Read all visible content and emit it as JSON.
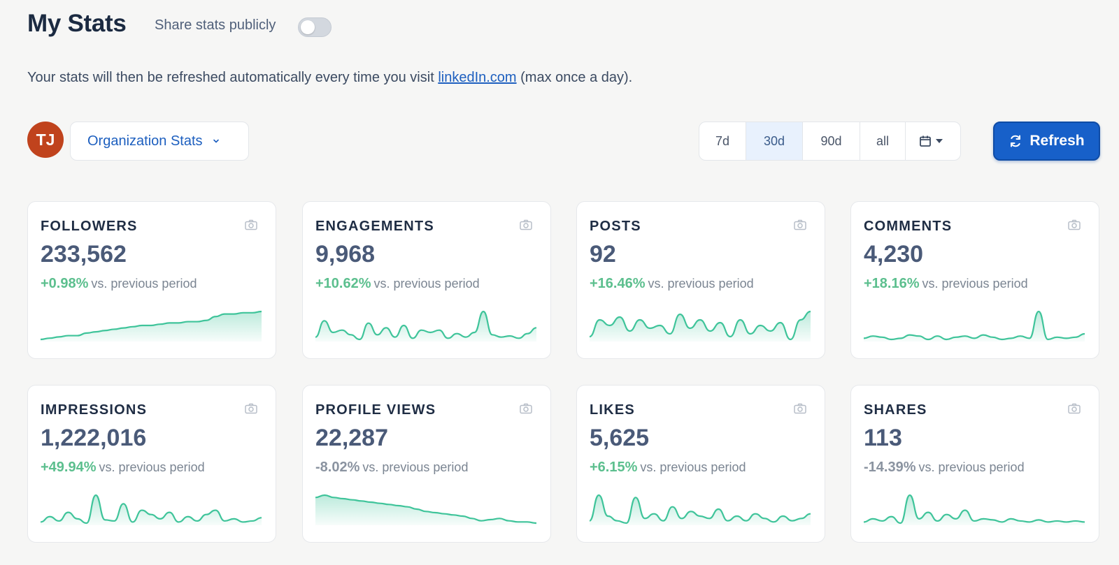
{
  "header": {
    "title": "My Stats",
    "share_label": "Share stats publicly",
    "share_enabled": false
  },
  "info": {
    "before": "Your stats will then be refreshed automatically every time you visit ",
    "link_text": "linkedIn.com",
    "after": " (max once a day)."
  },
  "controls": {
    "avatar_initials": "TJ",
    "avatar_color": "#c0431d",
    "org_select_label": "Organization Stats",
    "ranges": [
      {
        "label": "7d",
        "active": false
      },
      {
        "label": "30d",
        "active": true
      },
      {
        "label": "90d",
        "active": false
      },
      {
        "label": "all",
        "active": false
      }
    ],
    "calendar_icon": "calendar-icon",
    "refresh_label": "Refresh",
    "accent_color": "#1760c9"
  },
  "colors": {
    "positive": "#5cbf8e",
    "negative": "#8a93a0",
    "sparkline": "#3fc49a"
  },
  "cards": [
    {
      "label": "FOLLOWERS",
      "value": "233,562",
      "change": "+0.98%",
      "positive": true,
      "vs": "vs. previous period",
      "spark": [
        2,
        3,
        4,
        5,
        5,
        7,
        8,
        9,
        10,
        11,
        12,
        13,
        13,
        14,
        15,
        15,
        16,
        16,
        17,
        20,
        22,
        22,
        23,
        23,
        24
      ]
    },
    {
      "label": "ENGAGEMENTS",
      "value": "9,968",
      "change": "+10.62%",
      "positive": true,
      "vs": "vs. previous period",
      "spark": [
        4,
        18,
        8,
        10,
        6,
        2,
        16,
        6,
        12,
        4,
        14,
        3,
        10,
        8,
        10,
        3,
        7,
        4,
        8,
        26,
        6,
        4,
        5,
        3,
        7,
        12
      ]
    },
    {
      "label": "POSTS",
      "value": "92",
      "change": "+16.46%",
      "positive": true,
      "vs": "vs. previous period",
      "spark": [
        6,
        18,
        14,
        20,
        10,
        18,
        12,
        14,
        8,
        22,
        12,
        18,
        10,
        16,
        6,
        18,
        8,
        14,
        10,
        16,
        4,
        18,
        24
      ]
    },
    {
      "label": "COMMENTS",
      "value": "4,230",
      "change": "+18.16%",
      "positive": true,
      "vs": "vs. previous period",
      "spark": [
        4,
        6,
        5,
        3,
        4,
        7,
        6,
        3,
        6,
        3,
        5,
        6,
        4,
        7,
        5,
        3,
        4,
        6,
        4,
        28,
        3,
        5,
        4,
        5,
        8
      ]
    },
    {
      "label": "IMPRESSIONS",
      "value": "1,222,016",
      "change": "+49.94%",
      "positive": true,
      "vs": "vs. previous period",
      "spark": [
        3,
        8,
        4,
        12,
        6,
        2,
        28,
        5,
        4,
        20,
        3,
        14,
        10,
        6,
        12,
        3,
        8,
        4,
        10,
        14,
        4,
        6,
        3,
        4,
        7
      ]
    },
    {
      "label": "PROFILE VIEWS",
      "value": "22,287",
      "change": "-8.02%",
      "positive": false,
      "vs": "vs. previous period",
      "spark": [
        24,
        26,
        24,
        23,
        22,
        21,
        20,
        19,
        18,
        17,
        16,
        14,
        12,
        11,
        10,
        9,
        8,
        6,
        4,
        5,
        6,
        4,
        3,
        3,
        2
      ]
    },
    {
      "label": "LIKES",
      "value": "5,625",
      "change": "+6.15%",
      "positive": true,
      "vs": "vs. previous period",
      "spark": [
        4,
        26,
        8,
        4,
        2,
        24,
        6,
        10,
        4,
        16,
        6,
        12,
        8,
        6,
        14,
        4,
        8,
        4,
        10,
        6,
        3,
        8,
        4,
        6,
        10
      ]
    },
    {
      "label": "SHARES",
      "value": "113",
      "change": "-14.39%",
      "positive": false,
      "vs": "vs. previous period",
      "spark": [
        3,
        6,
        4,
        8,
        2,
        28,
        6,
        12,
        4,
        10,
        6,
        14,
        4,
        6,
        5,
        3,
        6,
        4,
        3,
        5,
        3,
        4,
        3,
        4,
        3
      ]
    }
  ]
}
